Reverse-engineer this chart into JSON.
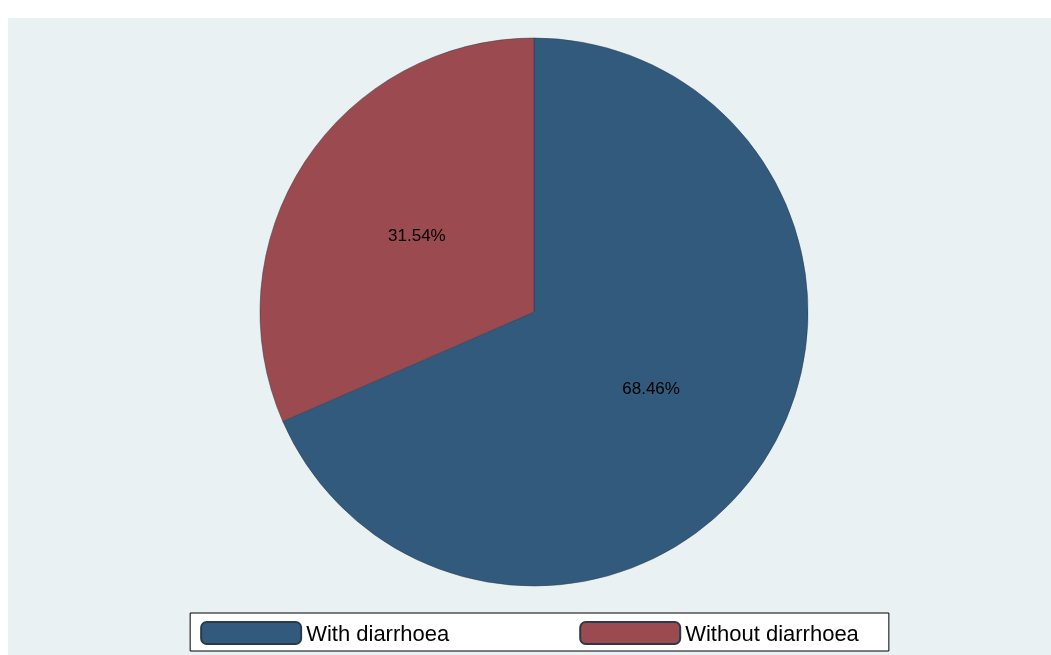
{
  "chart_data": {
    "type": "pie",
    "categories": [
      "With diarrhoea",
      "Without diarrhoea"
    ],
    "values": [
      68.46,
      31.54
    ],
    "colors": [
      "#325a7d",
      "#9b4a4f"
    ],
    "value_labels": [
      "68.46%",
      "31.54%"
    ],
    "legend": "bottom"
  }
}
